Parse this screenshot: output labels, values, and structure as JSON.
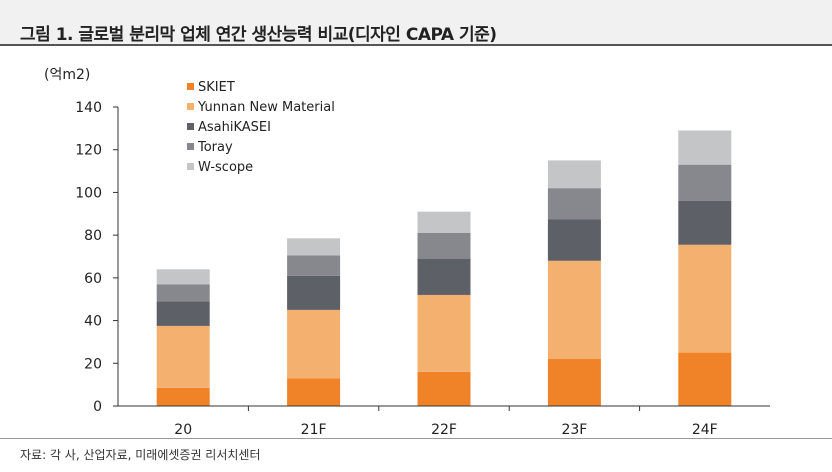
{
  "header": {
    "title": "그림 1. 글로벌 분리막 업체 연간 생산능력 비교(디자인 CAPA 기준)"
  },
  "source": "자료: 각 사, 산업자료, 미래에셋증권 리서치센터",
  "chart_data": {
    "type": "bar",
    "stacked": true,
    "title": "",
    "unit_label": "(억m2)",
    "categories": [
      "20",
      "21F",
      "22F",
      "23F",
      "24F"
    ],
    "ylim": [
      0,
      140
    ],
    "yticks": [
      0,
      20,
      40,
      60,
      80,
      100,
      120,
      140
    ],
    "grid": false,
    "legend_position": "top-left",
    "series": [
      {
        "name": "SKIET",
        "color": "#f08228",
        "values": [
          8.5,
          13,
          16,
          22,
          25
        ]
      },
      {
        "name": "Yunnan New Material",
        "color": "#f3b06f",
        "values": [
          29,
          32,
          36,
          46,
          50.5
        ]
      },
      {
        "name": "AsahiKASEI",
        "color": "#5d6066",
        "values": [
          11.5,
          16,
          17,
          19.5,
          20.5
        ]
      },
      {
        "name": "Toray",
        "color": "#86888d",
        "values": [
          8,
          9.5,
          12,
          14.5,
          17
        ]
      },
      {
        "name": "W-scope",
        "color": "#c4c5c7",
        "values": [
          7,
          8,
          10,
          13,
          16
        ]
      }
    ]
  }
}
